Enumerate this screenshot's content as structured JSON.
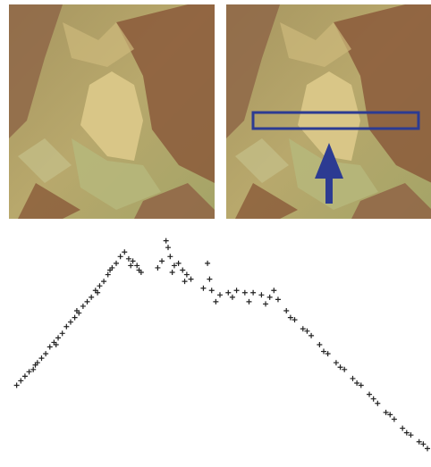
{
  "chart_data": {
    "type": "scatter",
    "color": "#222222",
    "xlim": [
      0,
      100
    ],
    "ylim": [
      0,
      100
    ],
    "x": [
      1,
      2,
      3,
      4,
      5,
      5.5,
      6,
      7,
      8,
      9,
      10,
      10.5,
      11,
      12,
      13,
      14,
      15,
      15.5,
      16,
      17,
      18,
      19,
      20,
      20.5,
      21,
      22,
      23,
      23.5,
      24,
      25,
      26,
      27,
      28,
      28.5,
      29,
      30,
      30.5,
      31,
      35,
      36,
      37,
      37.5,
      38,
      38.5,
      39,
      40,
      41,
      41.5,
      42,
      43,
      46,
      47,
      47.5,
      48,
      49,
      50,
      52,
      53,
      54,
      56,
      57,
      58,
      60,
      61,
      62,
      63,
      64,
      66,
      67,
      68,
      70,
      71,
      72,
      74,
      75,
      76,
      78,
      79,
      80,
      82,
      83,
      84,
      86,
      87,
      88,
      90,
      91,
      92,
      94,
      95,
      96,
      98,
      99,
      100
    ],
    "values": [
      33,
      35,
      37,
      39,
      40,
      42,
      43,
      45,
      47,
      50,
      52,
      51,
      54,
      56,
      59,
      61,
      63,
      66,
      65,
      68,
      70,
      72,
      75,
      74,
      77,
      79,
      82,
      84,
      85,
      87,
      90,
      92,
      89,
      86,
      88,
      86,
      84,
      83,
      85,
      88,
      97,
      94,
      90,
      83,
      86,
      87,
      84,
      79,
      82,
      80,
      76,
      87,
      80,
      75,
      70,
      73,
      74,
      72,
      75,
      74,
      70,
      74,
      73,
      69,
      72,
      75,
      71,
      66,
      63,
      62,
      58,
      57,
      55,
      51,
      48,
      47,
      43,
      41,
      40,
      36,
      34,
      33,
      29,
      27,
      25,
      21,
      20,
      18,
      14,
      12,
      11,
      8,
      7,
      5
    ]
  }
}
